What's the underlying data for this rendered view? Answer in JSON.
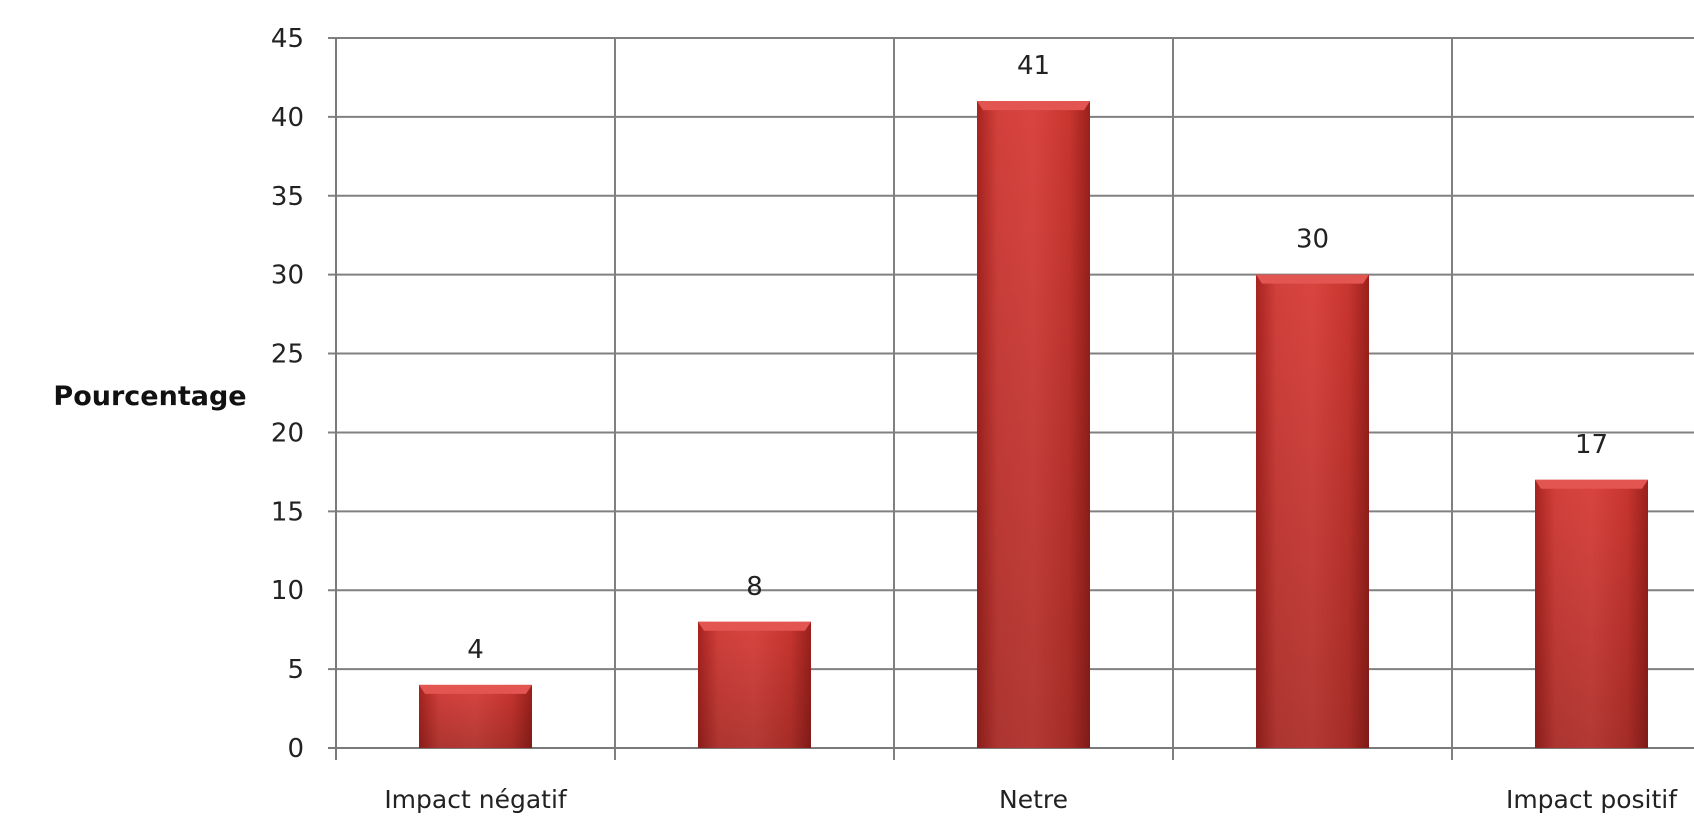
{
  "chart_data": {
    "type": "bar",
    "title": "",
    "xlabel": "",
    "ylabel": "Pourcentage",
    "ylim": [
      0,
      45
    ],
    "yticks": [
      0,
      5,
      10,
      15,
      20,
      25,
      30,
      35,
      40,
      45
    ],
    "categories": [
      "Impact négatif",
      "",
      "Netre",
      "",
      "Impact positif"
    ],
    "values": [
      4,
      8,
      41,
      30,
      17
    ],
    "data_labels": [
      "4",
      "8",
      "41",
      "30",
      "17"
    ],
    "grid": true,
    "legend": "none",
    "bar_color": "#c9302c",
    "bar_highlight_color": "#e25550",
    "bar_shadow_color": "#9e2320",
    "grid_color": "#808080"
  }
}
